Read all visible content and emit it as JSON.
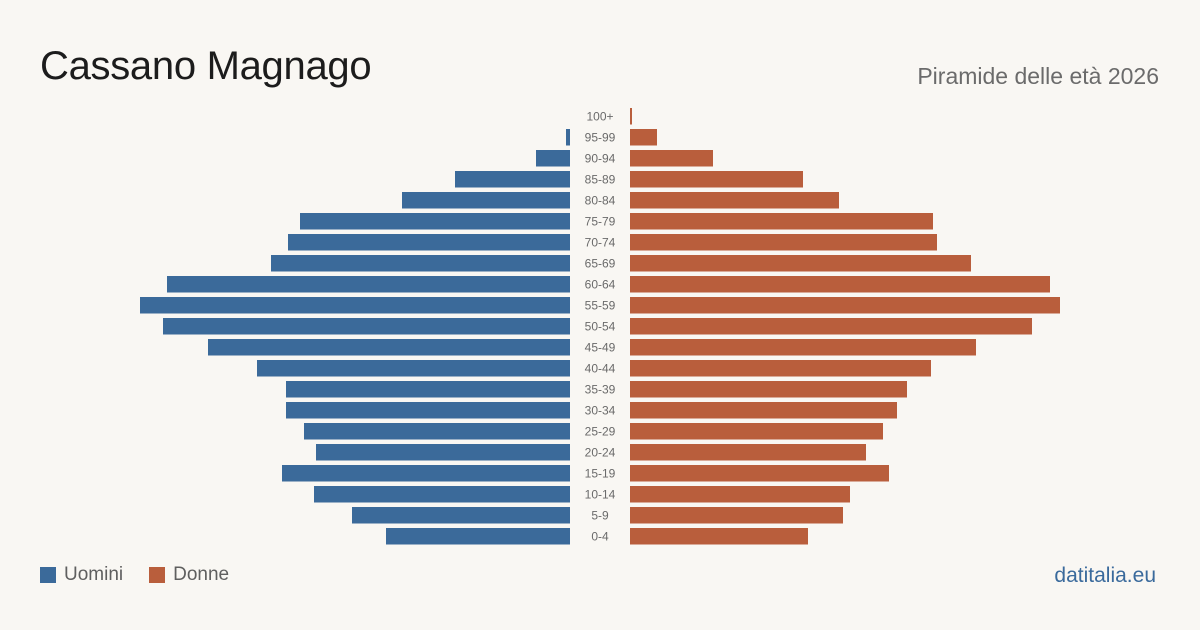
{
  "header": {
    "title": "Cassano Magnago",
    "subtitle": "Piramide delle età 2026"
  },
  "legend": {
    "men_label": "Uomini",
    "women_label": "Donne"
  },
  "footer": {
    "brand": "datitalia.eu"
  },
  "colors": {
    "men": "#3b6a9a",
    "women": "#b95e3c",
    "background": "#f9f7f3"
  },
  "chart_data": {
    "type": "bar",
    "orientation": "horizontal",
    "categories": [
      "100+",
      "95-99",
      "90-94",
      "85-89",
      "80-84",
      "75-79",
      "70-74",
      "65-69",
      "60-64",
      "55-59",
      "50-54",
      "45-49",
      "40-44",
      "35-39",
      "30-34",
      "25-29",
      "20-24",
      "15-19",
      "10-14",
      "5-9",
      "0-4"
    ],
    "series": [
      {
        "name": "Uomini",
        "values": [
          0,
          4,
          34,
          115,
          168,
          270,
          282,
          299,
          403,
          430,
          407,
          362,
          313,
          284,
          284,
          266,
          254,
          288,
          256,
          218,
          184
        ]
      },
      {
        "name": "Donne",
        "values": [
          2,
          27,
          83,
          173,
          209,
          303,
          307,
          341,
          420,
          430,
          402,
          346,
          301,
          277,
          267,
          253,
          236,
          259,
          220,
          213,
          178
        ]
      }
    ],
    "xlim": [
      0,
      430
    ],
    "legend_position": "bottom-left",
    "grid": false
  }
}
